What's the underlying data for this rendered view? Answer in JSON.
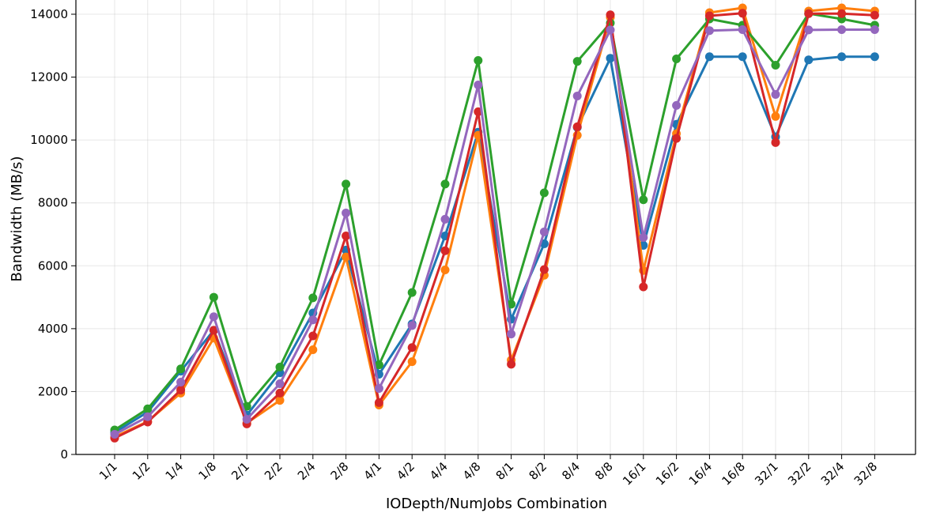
{
  "chart_data": {
    "type": "line",
    "xlabel": "IODepth/NumJobs Combination",
    "ylabel": "Bandwidth (MB/s)",
    "ylim": [
      0,
      14000
    ],
    "yticks": [
      0,
      2000,
      4000,
      6000,
      8000,
      10000,
      12000,
      14000
    ],
    "grid": true,
    "categories": [
      "1/1",
      "1/2",
      "1/4",
      "1/8",
      "2/1",
      "2/2",
      "2/4",
      "2/8",
      "4/1",
      "4/2",
      "4/4",
      "4/8",
      "8/1",
      "8/2",
      "8/4",
      "8/8",
      "16/1",
      "16/2",
      "16/4",
      "16/8",
      "32/1",
      "32/2",
      "32/4",
      "32/8"
    ],
    "series": [
      {
        "color": "#1f77b4",
        "values": [
          700,
          1350,
          2650,
          3950,
          1250,
          2600,
          4500,
          6500,
          2550,
          4150,
          6950,
          10250,
          4300,
          6700,
          10400,
          12600,
          6650,
          10500,
          12650,
          12650,
          10100,
          12550,
          12650,
          12650
        ]
      },
      {
        "color": "#ff7f0e",
        "values": [
          560,
          1050,
          1950,
          3700,
          1000,
          1720,
          3330,
          6280,
          1570,
          2950,
          5870,
          10150,
          3000,
          5700,
          10150,
          13900,
          5850,
          10200,
          14050,
          14200,
          10750,
          14100,
          14200,
          14100
        ]
      },
      {
        "color": "#2ca02c",
        "values": [
          780,
          1450,
          2720,
          5000,
          1530,
          2780,
          4980,
          8600,
          2850,
          5150,
          8600,
          12530,
          4780,
          8320,
          12500,
          13720,
          8100,
          12580,
          13850,
          13650,
          12380,
          14020,
          13850,
          13650
        ]
      },
      {
        "color": "#d62728",
        "values": [
          520,
          1030,
          2050,
          3950,
          970,
          1950,
          3770,
          6950,
          1650,
          3400,
          6480,
          10900,
          2870,
          5880,
          10420,
          13980,
          5330,
          10050,
          13950,
          14030,
          9920,
          14020,
          14020,
          13970
        ]
      },
      {
        "color": "#9467bd",
        "values": [
          640,
          1200,
          2300,
          4380,
          1120,
          2250,
          4280,
          7680,
          2100,
          4100,
          7480,
          11750,
          3830,
          7080,
          11400,
          13500,
          6900,
          11100,
          13480,
          13510,
          11450,
          13500,
          13510,
          13510
        ]
      }
    ]
  }
}
